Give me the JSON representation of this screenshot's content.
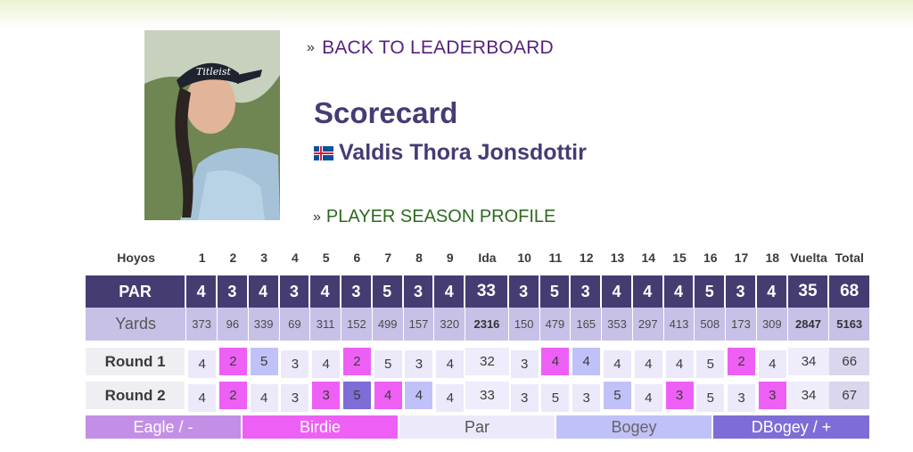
{
  "nav": {
    "back_label": "BACK TO LEADERBOARD",
    "season_label": "PLAYER SEASON PROFILE",
    "raquo": "»"
  },
  "page": {
    "title": "Scorecard",
    "player_name": "Valdis Thora Jonsdottir",
    "flag_icon": "iceland-flag-icon"
  },
  "scorecard": {
    "headers": [
      "Hoyos",
      "1",
      "2",
      "3",
      "4",
      "5",
      "6",
      "7",
      "8",
      "9",
      "Ida",
      "10",
      "11",
      "12",
      "13",
      "14",
      "15",
      "16",
      "17",
      "18",
      "Vuelta",
      "Total"
    ],
    "par": {
      "label": "PAR",
      "values": [
        "4",
        "3",
        "4",
        "3",
        "4",
        "3",
        "5",
        "3",
        "4",
        "33",
        "3",
        "5",
        "3",
        "4",
        "4",
        "4",
        "5",
        "3",
        "4",
        "35",
        "68"
      ]
    },
    "yards": {
      "label": "Yards",
      "values": [
        "373",
        "96",
        "339",
        "69",
        "311",
        "152",
        "499",
        "157",
        "320",
        "2316",
        "150",
        "479",
        "165",
        "353",
        "297",
        "413",
        "508",
        "173",
        "309",
        "2847",
        "5163"
      ]
    },
    "rounds": [
      {
        "label": "Round 1",
        "values": [
          "4",
          "2",
          "5",
          "3",
          "4",
          "2",
          "5",
          "3",
          "4",
          "32",
          "3",
          "4",
          "4",
          "4",
          "4",
          "4",
          "5",
          "2",
          "4",
          "34",
          "66"
        ],
        "results": [
          "par",
          "birdie",
          "bogey",
          "par",
          "par",
          "birdie",
          "par",
          "par",
          "par",
          "sum",
          "par",
          "birdie",
          "bogey",
          "par",
          "par",
          "par",
          "par",
          "birdie",
          "par",
          "sum",
          "total"
        ]
      },
      {
        "label": "Round 2",
        "values": [
          "4",
          "2",
          "4",
          "3",
          "3",
          "5",
          "4",
          "4",
          "4",
          "33",
          "3",
          "5",
          "3",
          "5",
          "4",
          "3",
          "5",
          "3",
          "3",
          "34",
          "67"
        ],
        "results": [
          "par",
          "birdie",
          "par",
          "par",
          "birdie",
          "dbogey",
          "birdie",
          "bogey",
          "par",
          "sum",
          "par",
          "par",
          "par",
          "bogey",
          "par",
          "birdie",
          "par",
          "par",
          "birdie",
          "sum",
          "total"
        ]
      }
    ]
  },
  "legend": {
    "items": [
      {
        "key": "eagle",
        "label": "Eagle / -",
        "color": "#c38fe6",
        "text_color": "#ffffff"
      },
      {
        "key": "birdie",
        "label": "Birdie",
        "color": "#ee60f5",
        "text_color": "#ffffff"
      },
      {
        "key": "par",
        "label": "Par",
        "color": "#ece9fb",
        "text_color": "#555555"
      },
      {
        "key": "bogey",
        "label": "Bogey",
        "color": "#c1c1f9",
        "text_color": "#666666"
      },
      {
        "key": "dbogey",
        "label": "DBogey / +",
        "color": "#7e6dd6",
        "text_color": "#ffffff"
      }
    ]
  },
  "colors": {
    "header_bg": "#453c72",
    "accent_purple": "#57227e",
    "accent_green": "#2d6a1f",
    "yards_bg": "#c7c1e7"
  }
}
